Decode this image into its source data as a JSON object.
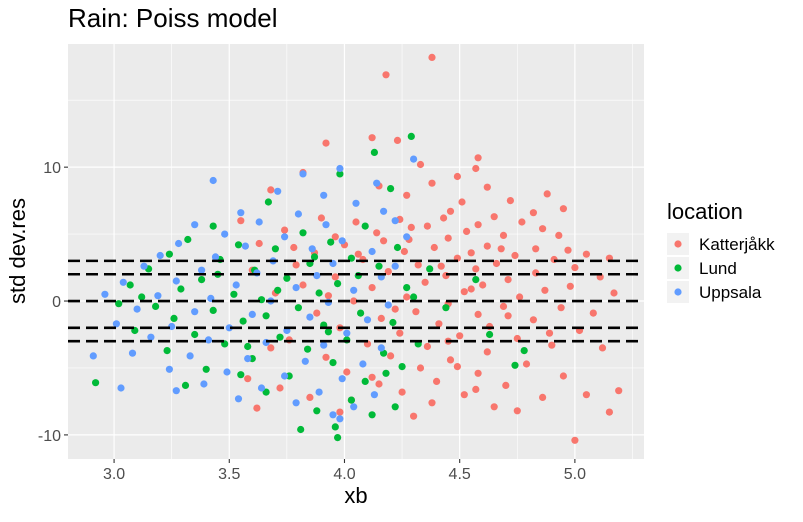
{
  "chart_data": {
    "type": "scatter",
    "title": "Rain: Poiss model",
    "xlabel": "xb",
    "ylabel": "std dev.res",
    "xlim": [
      2.8,
      5.3
    ],
    "ylim": [
      -11.8,
      19.2
    ],
    "x_ticks": [
      3.0,
      3.5,
      4.0,
      4.5,
      5.0
    ],
    "x_tick_labels": [
      "3.0",
      "3.5",
      "4.0",
      "4.5",
      "5.0"
    ],
    "y_ticks": [
      -10,
      0,
      10
    ],
    "y_tick_labels": [
      "-10",
      "0",
      "10"
    ],
    "grid": true,
    "background": "#EBEBEB",
    "reference_lines": {
      "style": "dashed",
      "color": "#000000",
      "y": [
        -3,
        -2,
        0,
        2,
        3
      ]
    },
    "legend": {
      "title": "location",
      "placement": "right",
      "entries": [
        {
          "name": "Katterjåkk",
          "color": "#F8766D"
        },
        {
          "name": "Lund",
          "color": "#00BA38"
        },
        {
          "name": "Uppsala",
          "color": "#619CFF"
        }
      ]
    },
    "series": [
      {
        "name": "Katterjåkk",
        "color": "#F8766D",
        "points": [
          [
            4.38,
            18.2
          ],
          [
            4.18,
            16.9
          ],
          [
            4.12,
            12.2
          ],
          [
            4.23,
            12.0
          ],
          [
            3.92,
            11.8
          ],
          [
            4.58,
            10.7
          ],
          [
            4.33,
            10.2
          ],
          [
            4.57,
            9.9
          ],
          [
            3.82,
            9.6
          ],
          [
            4.49,
            9.3
          ],
          [
            4.38,
            8.8
          ],
          [
            4.88,
            8.0
          ],
          [
            4.62,
            8.5
          ],
          [
            3.68,
            8.3
          ],
          [
            4.15,
            8.6
          ],
          [
            4.27,
            7.9
          ],
          [
            4.51,
            7.4
          ],
          [
            4.72,
            7.5
          ],
          [
            4.95,
            6.9
          ],
          [
            4.46,
            6.7
          ],
          [
            4.82,
            6.6
          ],
          [
            4.24,
            6.1
          ],
          [
            4.43,
            6.2
          ],
          [
            4.65,
            6.3
          ],
          [
            3.55,
            6.0
          ],
          [
            3.9,
            6.2
          ],
          [
            4.05,
            5.9
          ],
          [
            4.36,
            5.6
          ],
          [
            4.58,
            5.7
          ],
          [
            4.77,
            5.9
          ],
          [
            3.74,
            5.3
          ],
          [
            4.14,
            5.1
          ],
          [
            4.53,
            5.2
          ],
          [
            4.86,
            5.4
          ],
          [
            4.93,
            4.9
          ],
          [
            3.96,
            4.8
          ],
          [
            4.28,
            4.6
          ],
          [
            4.45,
            4.7
          ],
          [
            4.69,
            4.9
          ],
          [
            4.62,
            4.1
          ],
          [
            4.83,
            3.9
          ],
          [
            3.63,
            4.3
          ],
          [
            4.17,
            4.5
          ],
          [
            4.39,
            4.0
          ],
          [
            4.97,
            3.8
          ],
          [
            4.0,
            4.2
          ],
          [
            4.55,
            3.6
          ],
          [
            4.74,
            3.4
          ],
          [
            5.05,
            3.5
          ],
          [
            5.15,
            3.2
          ],
          [
            4.26,
            3.7
          ],
          [
            3.87,
            3.6
          ],
          [
            4.49,
            3.2
          ],
          [
            4.91,
            3.1
          ],
          [
            4.08,
            3.1
          ],
          [
            4.66,
            2.8
          ],
          [
            5.0,
            2.5
          ],
          [
            4.32,
            2.7
          ],
          [
            4.57,
            2.4
          ],
          [
            3.79,
            2.7
          ],
          [
            4.83,
            2.1
          ],
          [
            5.11,
            1.8
          ],
          [
            4.19,
            2.2
          ],
          [
            4.44,
            1.9
          ],
          [
            4.71,
            1.6
          ],
          [
            3.96,
            1.8
          ],
          [
            4.6,
            1.2
          ],
          [
            4.98,
            1.1
          ],
          [
            4.35,
            1.4
          ],
          [
            4.87,
            0.8
          ],
          [
            5.17,
            0.6
          ],
          [
            4.12,
            1.0
          ],
          [
            4.52,
            0.7
          ],
          [
            4.76,
            0.3
          ],
          [
            3.7,
            0.6
          ],
          [
            4.27,
            0.3
          ],
          [
            4.04,
            0.0
          ],
          [
            4.45,
            -0.2
          ],
          [
            4.69,
            -0.4
          ],
          [
            4.94,
            -0.5
          ],
          [
            5.08,
            -0.9
          ],
          [
            4.31,
            -0.8
          ],
          [
            4.58,
            -1.0
          ],
          [
            3.88,
            -0.9
          ],
          [
            4.16,
            -1.3
          ],
          [
            4.82,
            -1.4
          ],
          [
            4.41,
            -1.7
          ],
          [
            4.63,
            -1.9
          ],
          [
            5.02,
            -2.2
          ],
          [
            3.98,
            -2.0
          ],
          [
            4.24,
            -2.4
          ],
          [
            4.5,
            -2.6
          ],
          [
            4.75,
            -2.8
          ],
          [
            4.9,
            -3.3
          ],
          [
            3.76,
            -2.9
          ],
          [
            4.1,
            -3.2
          ],
          [
            4.36,
            -3.4
          ],
          [
            4.62,
            -3.8
          ],
          [
            5.12,
            -3.5
          ],
          [
            4.2,
            -4.1
          ],
          [
            4.46,
            -4.4
          ],
          [
            4.79,
            -4.7
          ],
          [
            3.92,
            -4.2
          ],
          [
            4.33,
            -5.0
          ],
          [
            4.58,
            -5.4
          ],
          [
            4.95,
            -5.6
          ],
          [
            4.12,
            -5.7
          ],
          [
            4.4,
            -6.0
          ],
          [
            4.7,
            -6.3
          ],
          [
            3.72,
            -6.5
          ],
          [
            4.25,
            -6.8
          ],
          [
            4.52,
            -7.0
          ],
          [
            4.86,
            -7.2
          ],
          [
            5.05,
            -7.0
          ],
          [
            5.19,
            -6.7
          ],
          [
            4.03,
            -7.4
          ],
          [
            4.38,
            -7.6
          ],
          [
            4.65,
            -7.9
          ],
          [
            4.75,
            -8.2
          ],
          [
            3.98,
            -8.3
          ],
          [
            4.3,
            -8.6
          ],
          [
            5.15,
            -8.3
          ],
          [
            5.0,
            -10.4
          ],
          [
            3.62,
            -8.0
          ],
          [
            3.85,
            -7.2
          ],
          [
            4.15,
            -6.2
          ],
          [
            4.45,
            -3.0
          ],
          [
            4.55,
            0.9
          ],
          [
            3.6,
            2.3
          ],
          [
            3.82,
            1.2
          ],
          [
            4.06,
            3.5
          ],
          [
            4.29,
            5.5
          ],
          [
            4.71,
            -1.1
          ],
          [
            4.89,
            -2.4
          ],
          [
            3.68,
            -3.5
          ],
          [
            4.01,
            -5.3
          ],
          [
            4.42,
            2.6
          ],
          [
            4.68,
            3.9
          ],
          [
            3.93,
            0.4
          ],
          [
            4.22,
            -0.6
          ],
          [
            4.49,
            -4.9
          ],
          [
            3.58,
            -5.8
          ],
          [
            3.78,
            4.0
          ],
          [
            4.57,
            -6.6
          ]
        ]
      },
      {
        "name": "Lund",
        "color": "#00BA38",
        "points": [
          [
            4.29,
            12.3
          ],
          [
            4.13,
            11.1
          ],
          [
            3.98,
            9.5
          ],
          [
            4.2,
            8.4
          ],
          [
            3.67,
            7.4
          ],
          [
            3.43,
            5.6
          ],
          [
            3.82,
            5.1
          ],
          [
            4.09,
            5.6
          ],
          [
            3.32,
            4.6
          ],
          [
            3.54,
            4.2
          ],
          [
            3.94,
            4.4
          ],
          [
            4.23,
            4.0
          ],
          [
            3.7,
            3.9
          ],
          [
            3.24,
            3.5
          ],
          [
            3.46,
            3.1
          ],
          [
            4.03,
            3.2
          ],
          [
            3.85,
            2.8
          ],
          [
            3.15,
            2.4
          ],
          [
            3.61,
            2.3
          ],
          [
            4.15,
            2.6
          ],
          [
            3.38,
            1.6
          ],
          [
            3.75,
            1.7
          ],
          [
            3.97,
            1.3
          ],
          [
            3.07,
            1.2
          ],
          [
            3.29,
            0.9
          ],
          [
            3.52,
            0.5
          ],
          [
            3.89,
            0.6
          ],
          [
            4.27,
            1.0
          ],
          [
            3.64,
            0.1
          ],
          [
            3.18,
            -0.4
          ],
          [
            3.43,
            -0.7
          ],
          [
            3.8,
            -0.5
          ],
          [
            4.07,
            -0.9
          ],
          [
            3.26,
            -1.3
          ],
          [
            3.56,
            -1.5
          ],
          [
            3.91,
            -1.8
          ],
          [
            4.21,
            -1.6
          ],
          [
            3.09,
            -2.2
          ],
          [
            3.35,
            -2.5
          ],
          [
            3.72,
            -2.7
          ],
          [
            4.01,
            -2.9
          ],
          [
            3.48,
            -3.2
          ],
          [
            3.84,
            -3.6
          ],
          [
            4.17,
            -3.9
          ],
          [
            3.23,
            -3.7
          ],
          [
            3.6,
            -4.3
          ],
          [
            3.95,
            -4.6
          ],
          [
            4.25,
            -4.9
          ],
          [
            3.4,
            -5.1
          ],
          [
            3.76,
            -5.6
          ],
          [
            4.09,
            -6.0
          ],
          [
            3.31,
            -6.3
          ],
          [
            3.66,
            -6.8
          ],
          [
            4.03,
            -7.4
          ],
          [
            4.22,
            -7.9
          ],
          [
            3.88,
            -8.2
          ],
          [
            4.12,
            -8.5
          ],
          [
            3.81,
            -9.6
          ],
          [
            3.96,
            -9.4
          ],
          [
            3.97,
            -10.2
          ],
          [
            2.92,
            -6.1
          ],
          [
            3.55,
            -5.5
          ],
          [
            4.32,
            -3.2
          ],
          [
            4.37,
            2.4
          ],
          [
            4.44,
            -0.5
          ],
          [
            4.63,
            -2.5
          ],
          [
            4.74,
            -4.8
          ],
          [
            4.78,
            -3.7
          ],
          [
            4.57,
            1.6
          ],
          [
            3.02,
            -0.2
          ],
          [
            3.12,
            0.3
          ],
          [
            3.71,
            0.8
          ],
          [
            3.93,
            -2.3
          ],
          [
            4.06,
            1.9
          ],
          [
            3.66,
            -1.1
          ],
          [
            3.45,
            2.0
          ],
          [
            4.18,
            -5.4
          ],
          [
            3.87,
            3.3
          ],
          [
            3.58,
            -3.4
          ],
          [
            4.3,
            0.3
          ]
        ]
      },
      {
        "name": "Uppsala",
        "color": "#619CFF",
        "points": [
          [
            4.3,
            10.6
          ],
          [
            3.98,
            9.9
          ],
          [
            3.82,
            9.5
          ],
          [
            3.43,
            9.0
          ],
          [
            4.14,
            8.8
          ],
          [
            3.71,
            8.2
          ],
          [
            3.91,
            7.9
          ],
          [
            4.05,
            7.3
          ],
          [
            3.55,
            6.6
          ],
          [
            3.8,
            6.5
          ],
          [
            4.17,
            6.7
          ],
          [
            3.35,
            5.7
          ],
          [
            3.63,
            5.9
          ],
          [
            3.92,
            5.7
          ],
          [
            4.22,
            6.0
          ],
          [
            3.48,
            5.0
          ],
          [
            3.74,
            4.8
          ],
          [
            3.99,
            4.5
          ],
          [
            4.27,
            4.8
          ],
          [
            3.28,
            4.3
          ],
          [
            3.57,
            4.1
          ],
          [
            3.86,
            3.9
          ],
          [
            4.12,
            3.7
          ],
          [
            3.2,
            3.4
          ],
          [
            3.44,
            3.3
          ],
          [
            3.69,
            3.0
          ],
          [
            3.95,
            2.8
          ],
          [
            4.22,
            2.6
          ],
          [
            3.13,
            2.6
          ],
          [
            3.38,
            2.3
          ],
          [
            3.62,
            2.1
          ],
          [
            3.88,
            1.9
          ],
          [
            4.16,
            1.8
          ],
          [
            3.04,
            1.4
          ],
          [
            3.27,
            1.5
          ],
          [
            3.53,
            1.2
          ],
          [
            3.79,
            1.0
          ],
          [
            4.04,
            0.8
          ],
          [
            2.96,
            0.5
          ],
          [
            3.19,
            0.4
          ],
          [
            3.42,
            0.2
          ],
          [
            3.68,
            0.0
          ],
          [
            3.93,
            -0.1
          ],
          [
            4.19,
            -0.3
          ],
          [
            3.1,
            -0.6
          ],
          [
            3.35,
            -0.8
          ],
          [
            3.6,
            -1.0
          ],
          [
            3.85,
            -1.2
          ],
          [
            4.1,
            -1.4
          ],
          [
            3.01,
            -1.7
          ],
          [
            3.25,
            -1.9
          ],
          [
            3.5,
            -2.0
          ],
          [
            3.75,
            -2.2
          ],
          [
            4.01,
            -2.4
          ],
          [
            3.16,
            -2.7
          ],
          [
            3.41,
            -2.9
          ],
          [
            3.66,
            -3.1
          ],
          [
            3.91,
            -3.3
          ],
          [
            4.16,
            -3.5
          ],
          [
            3.08,
            -3.9
          ],
          [
            3.33,
            -4.1
          ],
          [
            3.58,
            -4.3
          ],
          [
            3.83,
            -4.5
          ],
          [
            4.08,
            -4.7
          ],
          [
            3.24,
            -5.1
          ],
          [
            3.49,
            -5.3
          ],
          [
            3.74,
            -5.6
          ],
          [
            3.99,
            -5.8
          ],
          [
            3.39,
            -6.2
          ],
          [
            3.64,
            -6.5
          ],
          [
            3.89,
            -6.8
          ],
          [
            4.13,
            -7.0
          ],
          [
            3.54,
            -7.3
          ],
          [
            3.79,
            -7.6
          ],
          [
            4.04,
            -7.9
          ],
          [
            3.95,
            -8.5
          ],
          [
            3.98,
            -8.8
          ],
          [
            2.91,
            -4.1
          ],
          [
            3.03,
            -6.5
          ],
          [
            3.27,
            -6.7
          ]
        ]
      }
    ]
  }
}
